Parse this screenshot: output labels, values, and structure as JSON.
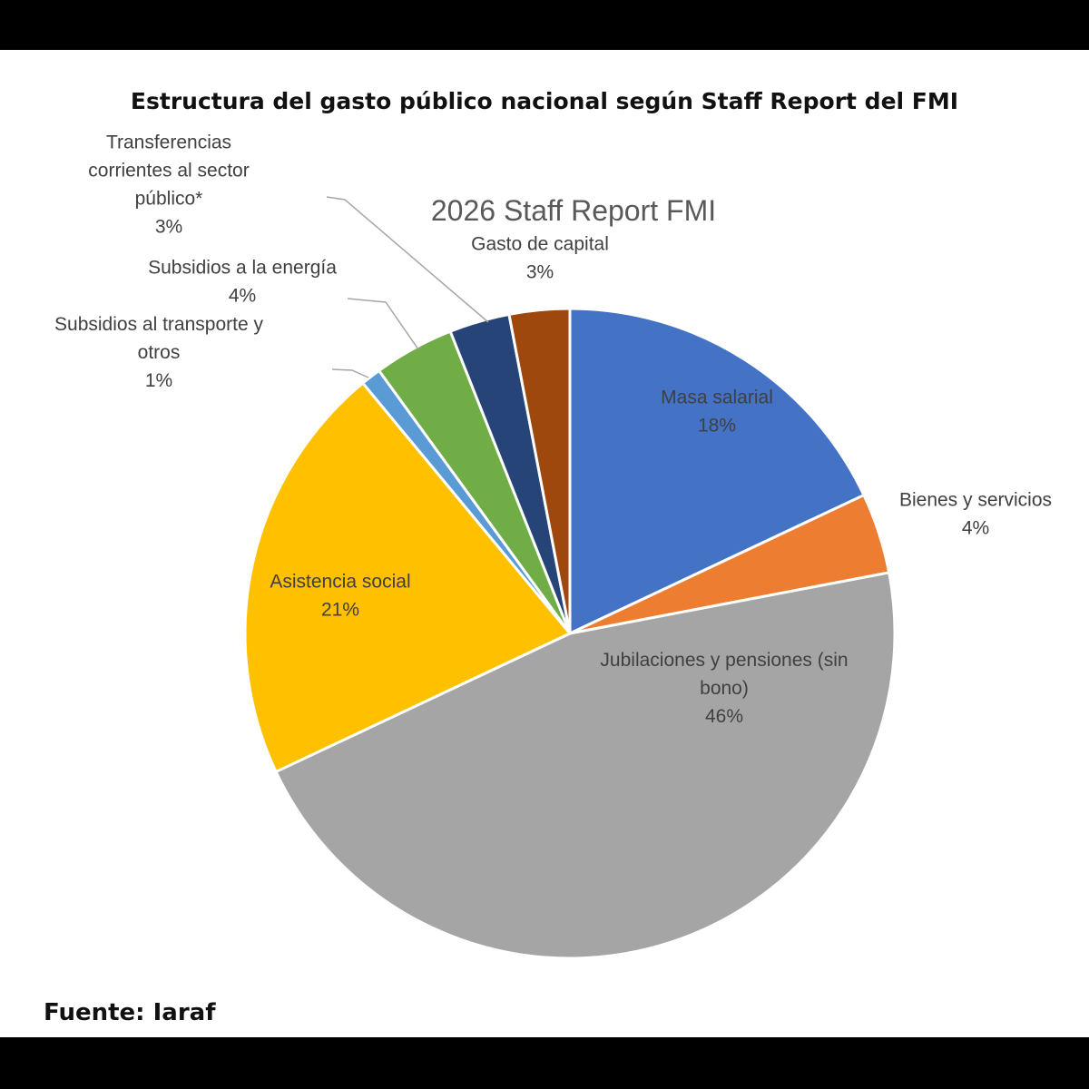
{
  "page": {
    "title": "Estructura del gasto público nacional según Staff Report del FMI",
    "source": "Fuente: Iaraf"
  },
  "chart_data": {
    "type": "pie",
    "title": "2026 Staff Report FMI",
    "start_angle_deg": 0,
    "direction": "clockwise",
    "slices": [
      {
        "label": "Masa salarial",
        "value": 18,
        "display": "18%",
        "color": "#4472C4",
        "label_lines": [
          "Masa salarial"
        ]
      },
      {
        "label": "Bienes y servicios",
        "value": 4,
        "display": "4%",
        "color": "#ED7D31",
        "label_lines": [
          "Bienes y servicios"
        ]
      },
      {
        "label": "Jubilaciones y pensiones (sin bono)",
        "value": 46,
        "display": "46%",
        "color": "#A5A5A5",
        "label_lines": [
          "Jubilaciones y pensiones (sin",
          "bono)"
        ]
      },
      {
        "label": "Asistencia social",
        "value": 21,
        "display": "21%",
        "color": "#FFC000",
        "label_lines": [
          "Asistencia social"
        ]
      },
      {
        "label": "Subsidios al transporte y otros",
        "value": 1,
        "display": "1%",
        "color": "#5B9BD5",
        "label_lines": [
          "Subsidios al transporte y",
          "otros"
        ]
      },
      {
        "label": "Subsidios a la energía",
        "value": 4,
        "display": "4%",
        "color": "#70AD47",
        "label_lines": [
          "Subsidios a la energía"
        ]
      },
      {
        "label": "Transferencias corrientes al sector público*",
        "value": 3,
        "display": "3%",
        "color": "#264478",
        "label_lines": [
          "Transferencias",
          "corrientes al sector",
          "público*"
        ]
      },
      {
        "label": "Gasto de capital",
        "value": 3,
        "display": "3%",
        "color": "#9E480E",
        "label_lines": [
          "Gasto de capital"
        ]
      }
    ]
  }
}
